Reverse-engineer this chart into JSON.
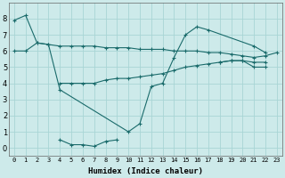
{
  "xlabel": "Humidex (Indice chaleur)",
  "bg_color": "#cdeaea",
  "grid_color": "#a8d5d5",
  "line_color": "#1a6b6b",
  "xlim": [
    -0.5,
    23.5
  ],
  "ylim": [
    -0.5,
    9.0
  ],
  "xticks": [
    0,
    1,
    2,
    3,
    4,
    5,
    6,
    7,
    8,
    9,
    10,
    11,
    12,
    13,
    14,
    15,
    16,
    17,
    18,
    19,
    20,
    21,
    22,
    23
  ],
  "yticks": [
    0,
    1,
    2,
    3,
    4,
    5,
    6,
    7,
    8
  ],
  "series": [
    {
      "x": [
        0,
        1,
        2,
        3,
        4,
        10,
        11,
        12,
        13,
        14,
        15,
        16,
        17,
        21,
        22
      ],
      "y": [
        7.9,
        8.2,
        6.5,
        6.4,
        3.6,
        1.0,
        1.5,
        3.8,
        4.0,
        5.6,
        7.0,
        7.5,
        7.3,
        6.3,
        5.9
      ]
    },
    {
      "x": [
        4,
        5,
        6,
        7,
        8,
        9
      ],
      "y": [
        0.5,
        0.2,
        0.2,
        0.1,
        0.4,
        0.5
      ]
    },
    {
      "x": [
        0,
        1,
        2,
        3,
        4,
        5,
        6,
        7,
        8,
        9,
        10,
        11,
        12,
        13,
        14,
        15,
        16,
        17,
        18,
        19,
        20,
        21,
        22,
        23
      ],
      "y": [
        6.0,
        6.0,
        6.5,
        6.4,
        6.3,
        6.3,
        6.3,
        6.3,
        6.2,
        6.2,
        6.2,
        6.1,
        6.1,
        6.1,
        6.0,
        6.0,
        6.0,
        5.9,
        5.9,
        5.8,
        5.7,
        5.6,
        5.7,
        5.9
      ]
    },
    {
      "x": [
        4,
        5,
        6,
        7,
        8,
        9,
        10,
        11,
        12,
        13,
        14,
        15,
        16,
        17,
        18,
        19,
        20,
        21,
        22
      ],
      "y": [
        4.0,
        4.0,
        4.0,
        4.0,
        4.2,
        4.3,
        4.3,
        4.4,
        4.5,
        4.6,
        4.8,
        5.0,
        5.1,
        5.2,
        5.3,
        5.4,
        5.4,
        5.3,
        5.3
      ]
    },
    {
      "x": [
        18,
        19,
        20,
        21,
        22
      ],
      "y": [
        5.3,
        5.4,
        5.4,
        5.0,
        5.0
      ]
    }
  ]
}
